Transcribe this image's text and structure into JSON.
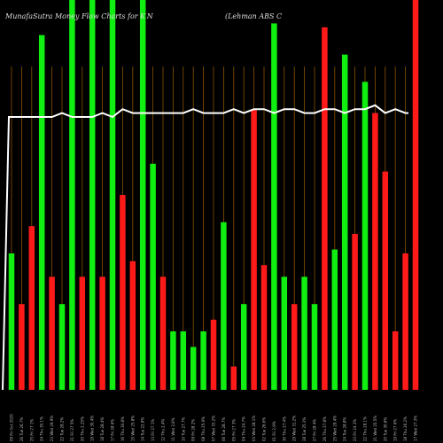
{
  "header": {
    "left_title": "MunafaSutra  Money Flow  Charts for K N",
    "right_title": "(Lehman  ABS C"
  },
  "chart_data": {
    "type": "bar",
    "title": "MunafaSutra Money Flow Charts for KTN",
    "subtitle": "(Lehman ABS C",
    "ylim": [
      0,
      100
    ],
    "grid": "vertical",
    "categories": [
      "09 Fri Oct 2025",
      "26 Tue 26.7%",
      "25 Fri 27 1%",
      "24 Thu 30.1%",
      "23 Wed 29.9%",
      "22 Tue 28.2%",
      "21 Fri 27 5%",
      "20 Thu 2.25%",
      "19 Wed 30.4%",
      "18 Tue 28.4%",
      "17 Fri 28 6%",
      "16 Thu 30.8%",
      "15 Wed 25.8%",
      "14 Tue 22.8%",
      "13 Fri 27 1%",
      "12 Thu 2.4%",
      "11 Wed 2.8%",
      "10 Tue 27.7%",
      "09 Fri 28 2%",
      "08 Thu 25.9%",
      "07 Wed 33.2%",
      "06 Tue 28.7%",
      "05 Fri 27 3%",
      "04 Thu 24.7%",
      "03 Wed 28.1%",
      "02 Tue 26.6%",
      "01 Fri 2.9%",
      "30 Thu 27.4%",
      "29 Wed 31.2%",
      "28 Tue 25.3%",
      "27 Fri 28 4%",
      "26 Thu 27.8%",
      "25 Wed 29.4%",
      "24 Tue 28.8%",
      "23 Fri 24 2%",
      "22 Thu 28.1%",
      "21 Wed 25.5%",
      "20 Tue 30.8%",
      "19 Fri 27 6%",
      "18 Thu 26.2%",
      "17 Wed 27.3%"
    ],
    "bar_colors": [
      "green",
      "red",
      "red",
      "green",
      "red",
      "green",
      "green",
      "red",
      "green",
      "red",
      "green",
      "red",
      "red",
      "green",
      "green",
      "red",
      "green",
      "green",
      "green",
      "green",
      "red",
      "green",
      "red",
      "green",
      "red",
      "red",
      "green",
      "green",
      "red",
      "green",
      "green",
      "red",
      "green",
      "green",
      "red",
      "green",
      "red",
      "red",
      "red",
      "red",
      "red"
    ],
    "series": [
      {
        "values": [
          35,
          22,
          42,
          91,
          29,
          22,
          100,
          29,
          100,
          29,
          100,
          50,
          33,
          100,
          58,
          29,
          15,
          15,
          11,
          15,
          18,
          43,
          6,
          22,
          72,
          32,
          94,
          29,
          22,
          29,
          22,
          93,
          36,
          86,
          40,
          79,
          71,
          56,
          15,
          35,
          100
        ]
      },
      {
        "type": "line",
        "values": [
          0,
          70,
          70,
          70,
          70,
          71,
          70,
          70,
          70,
          71,
          70,
          72,
          71,
          71,
          71,
          71,
          71,
          71,
          72,
          71,
          71,
          71,
          72,
          71,
          72,
          72,
          71,
          72,
          72,
          71,
          71,
          72,
          72,
          71,
          72,
          72,
          73,
          71,
          72,
          71,
          71
        ]
      }
    ]
  }
}
